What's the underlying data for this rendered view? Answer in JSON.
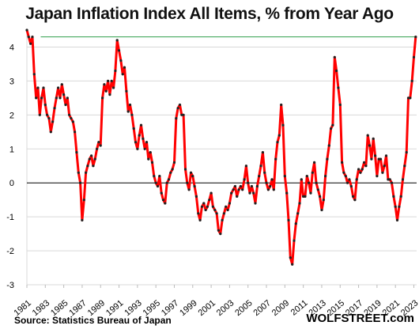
{
  "chart_data": {
    "type": "line",
    "title": "Japan Inflation Index All Items, % from Year Ago",
    "source": "Source: Statistics Bureau of Japan",
    "brand": "WOLFSTREET.com",
    "ylim": [
      -3,
      4.5
    ],
    "y_ticks": [
      "4",
      "3",
      "2",
      "1",
      "0",
      "-1",
      "-2",
      "-3"
    ],
    "y_tick_values": [
      4,
      3,
      2,
      1,
      0,
      -1,
      -2,
      -3
    ],
    "x_range": [
      1981,
      2023.3
    ],
    "x_ticks": [
      "1981",
      "1983",
      "1985",
      "1987",
      "1989",
      "1991",
      "1993",
      "1995",
      "1997",
      "1999",
      "2001",
      "2003",
      "2005",
      "2007",
      "2009",
      "2011",
      "2013",
      "2015",
      "2017",
      "2019",
      "2021",
      "2023"
    ],
    "x_tick_values": [
      1981,
      1983,
      1985,
      1987,
      1989,
      1991,
      1993,
      1995,
      1997,
      1999,
      2001,
      2003,
      2005,
      2007,
      2009,
      2011,
      2013,
      2015,
      2017,
      2019,
      2021,
      2023
    ],
    "reference_line_value": 4.3,
    "grid": true,
    "series_color": "#ff0000",
    "marker_color": "#222222",
    "reference_color": "#2e9e4a",
    "series": [
      {
        "points": [
          [
            1981.0,
            4.5
          ],
          [
            1981.2,
            4.3
          ],
          [
            1981.4,
            4.1
          ],
          [
            1981.6,
            4.3
          ],
          [
            1981.8,
            3.2
          ],
          [
            1982.0,
            2.5
          ],
          [
            1982.2,
            2.8
          ],
          [
            1982.4,
            2.0
          ],
          [
            1982.6,
            2.5
          ],
          [
            1982.8,
            2.8
          ],
          [
            1983.0,
            2.3
          ],
          [
            1983.2,
            2.0
          ],
          [
            1983.4,
            1.9
          ],
          [
            1983.6,
            1.5
          ],
          [
            1983.8,
            1.8
          ],
          [
            1984.0,
            2.2
          ],
          [
            1984.2,
            2.5
          ],
          [
            1984.4,
            2.8
          ],
          [
            1984.6,
            2.5
          ],
          [
            1984.8,
            2.9
          ],
          [
            1985.0,
            2.6
          ],
          [
            1985.2,
            2.3
          ],
          [
            1985.4,
            2.5
          ],
          [
            1985.6,
            2.0
          ],
          [
            1985.8,
            1.9
          ],
          [
            1986.0,
            1.8
          ],
          [
            1986.2,
            1.5
          ],
          [
            1986.4,
            0.9
          ],
          [
            1986.6,
            0.3
          ],
          [
            1986.8,
            0.0
          ],
          [
            1987.0,
            -1.1
          ],
          [
            1987.2,
            -0.5
          ],
          [
            1987.4,
            0.3
          ],
          [
            1987.6,
            0.5
          ],
          [
            1987.8,
            0.7
          ],
          [
            1988.0,
            0.8
          ],
          [
            1988.2,
            0.5
          ],
          [
            1988.4,
            0.7
          ],
          [
            1988.6,
            1.0
          ],
          [
            1988.8,
            1.2
          ],
          [
            1989.0,
            1.1
          ],
          [
            1989.2,
            2.5
          ],
          [
            1989.4,
            2.9
          ],
          [
            1989.6,
            2.7
          ],
          [
            1989.8,
            3.0
          ],
          [
            1990.0,
            2.6
          ],
          [
            1990.2,
            3.0
          ],
          [
            1990.4,
            2.8
          ],
          [
            1990.6,
            3.3
          ],
          [
            1990.8,
            4.2
          ],
          [
            1991.0,
            3.9
          ],
          [
            1991.2,
            3.6
          ],
          [
            1991.4,
            3.2
          ],
          [
            1991.6,
            3.4
          ],
          [
            1991.8,
            2.7
          ],
          [
            1992.0,
            2.1
          ],
          [
            1992.2,
            2.3
          ],
          [
            1992.4,
            2.0
          ],
          [
            1992.6,
            1.6
          ],
          [
            1992.8,
            1.2
          ],
          [
            1993.0,
            1.0
          ],
          [
            1993.2,
            1.4
          ],
          [
            1993.4,
            1.7
          ],
          [
            1993.6,
            1.3
          ],
          [
            1993.8,
            1.0
          ],
          [
            1994.0,
            1.2
          ],
          [
            1994.2,
            0.7
          ],
          [
            1994.4,
            0.9
          ],
          [
            1994.6,
            0.6
          ],
          [
            1994.8,
            0.2
          ],
          [
            1995.0,
            0.0
          ],
          [
            1995.2,
            -0.1
          ],
          [
            1995.4,
            0.2
          ],
          [
            1995.6,
            -0.3
          ],
          [
            1995.8,
            -0.5
          ],
          [
            1996.0,
            -0.6
          ],
          [
            1996.2,
            0.0
          ],
          [
            1996.4,
            0.1
          ],
          [
            1996.6,
            0.3
          ],
          [
            1996.8,
            0.4
          ],
          [
            1997.0,
            0.6
          ],
          [
            1997.2,
            1.9
          ],
          [
            1997.4,
            2.2
          ],
          [
            1997.6,
            2.3
          ],
          [
            1997.8,
            2.0
          ],
          [
            1998.0,
            2.0
          ],
          [
            1998.2,
            0.4
          ],
          [
            1998.4,
            0.0
          ],
          [
            1998.6,
            -0.2
          ],
          [
            1998.8,
            0.3
          ],
          [
            1999.0,
            0.2
          ],
          [
            1999.2,
            -0.1
          ],
          [
            1999.4,
            -0.4
          ],
          [
            1999.6,
            -0.9
          ],
          [
            1999.8,
            -1.1
          ],
          [
            2000.0,
            -0.7
          ],
          [
            2000.2,
            -0.6
          ],
          [
            2000.4,
            -0.8
          ],
          [
            2000.6,
            -0.7
          ],
          [
            2000.8,
            -0.5
          ],
          [
            2001.0,
            -0.3
          ],
          [
            2001.2,
            -0.7
          ],
          [
            2001.4,
            -0.8
          ],
          [
            2001.6,
            -0.9
          ],
          [
            2001.8,
            -1.4
          ],
          [
            2002.0,
            -1.5
          ],
          [
            2002.2,
            -1.1
          ],
          [
            2002.4,
            -0.9
          ],
          [
            2002.6,
            -0.7
          ],
          [
            2002.8,
            -0.8
          ],
          [
            2003.0,
            -0.6
          ],
          [
            2003.2,
            -0.3
          ],
          [
            2003.4,
            -0.2
          ],
          [
            2003.6,
            -0.1
          ],
          [
            2003.8,
            -0.4
          ],
          [
            2004.0,
            -0.2
          ],
          [
            2004.2,
            -0.1
          ],
          [
            2004.4,
            -0.2
          ],
          [
            2004.6,
            0.1
          ],
          [
            2004.8,
            0.5
          ],
          [
            2005.0,
            0.0
          ],
          [
            2005.2,
            -0.3
          ],
          [
            2005.4,
            -0.1
          ],
          [
            2005.6,
            -0.3
          ],
          [
            2005.8,
            -0.6
          ],
          [
            2006.0,
            -0.1
          ],
          [
            2006.2,
            0.2
          ],
          [
            2006.4,
            0.5
          ],
          [
            2006.6,
            0.9
          ],
          [
            2006.8,
            0.3
          ],
          [
            2007.0,
            0.0
          ],
          [
            2007.2,
            -0.2
          ],
          [
            2007.4,
            -0.1
          ],
          [
            2007.6,
            0.1
          ],
          [
            2007.8,
            -0.2
          ],
          [
            2008.0,
            0.7
          ],
          [
            2008.2,
            1.2
          ],
          [
            2008.4,
            1.4
          ],
          [
            2008.6,
            2.3
          ],
          [
            2008.8,
            1.7
          ],
          [
            2009.0,
            0.2
          ],
          [
            2009.2,
            -0.3
          ],
          [
            2009.4,
            -1.1
          ],
          [
            2009.6,
            -2.2
          ],
          [
            2009.8,
            -2.4
          ],
          [
            2010.0,
            -1.7
          ],
          [
            2010.2,
            -1.2
          ],
          [
            2010.4,
            -0.9
          ],
          [
            2010.6,
            -0.6
          ],
          [
            2010.8,
            0.1
          ],
          [
            2011.0,
            -0.4
          ],
          [
            2011.2,
            -0.4
          ],
          [
            2011.4,
            0.2
          ],
          [
            2011.6,
            0.0
          ],
          [
            2011.8,
            -0.3
          ],
          [
            2012.0,
            0.3
          ],
          [
            2012.2,
            0.6
          ],
          [
            2012.4,
            0.0
          ],
          [
            2012.6,
            -0.2
          ],
          [
            2012.8,
            -0.4
          ],
          [
            2013.0,
            -0.8
          ],
          [
            2013.2,
            -0.5
          ],
          [
            2013.4,
            0.2
          ],
          [
            2013.6,
            0.7
          ],
          [
            2013.8,
            1.1
          ],
          [
            2014.0,
            1.6
          ],
          [
            2014.2,
            1.7
          ],
          [
            2014.4,
            3.7
          ],
          [
            2014.6,
            3.3
          ],
          [
            2014.8,
            2.8
          ],
          [
            2015.0,
            2.3
          ],
          [
            2015.2,
            0.6
          ],
          [
            2015.4,
            0.3
          ],
          [
            2015.6,
            0.2
          ],
          [
            2015.8,
            0.0
          ],
          [
            2016.0,
            0.1
          ],
          [
            2016.2,
            -0.1
          ],
          [
            2016.4,
            -0.4
          ],
          [
            2016.6,
            -0.5
          ],
          [
            2016.8,
            0.1
          ],
          [
            2017.0,
            0.4
          ],
          [
            2017.2,
            0.3
          ],
          [
            2017.4,
            0.4
          ],
          [
            2017.6,
            0.6
          ],
          [
            2017.8,
            0.5
          ],
          [
            2018.0,
            1.4
          ],
          [
            2018.2,
            1.1
          ],
          [
            2018.4,
            0.7
          ],
          [
            2018.6,
            1.3
          ],
          [
            2018.8,
            0.8
          ],
          [
            2019.0,
            0.2
          ],
          [
            2019.2,
            0.7
          ],
          [
            2019.4,
            0.7
          ],
          [
            2019.6,
            0.3
          ],
          [
            2019.8,
            0.5
          ],
          [
            2020.0,
            0.8
          ],
          [
            2020.2,
            0.1
          ],
          [
            2020.4,
            0.1
          ],
          [
            2020.6,
            0.0
          ],
          [
            2020.8,
            -0.4
          ],
          [
            2021.0,
            -0.7
          ],
          [
            2021.2,
            -1.1
          ],
          [
            2021.4,
            -0.7
          ],
          [
            2021.6,
            -0.4
          ],
          [
            2021.8,
            0.1
          ],
          [
            2022.0,
            0.5
          ],
          [
            2022.2,
            0.9
          ],
          [
            2022.4,
            2.5
          ],
          [
            2022.6,
            2.5
          ],
          [
            2022.8,
            3.0
          ],
          [
            2023.0,
            3.7
          ],
          [
            2023.2,
            4.3
          ]
        ]
      }
    ]
  }
}
